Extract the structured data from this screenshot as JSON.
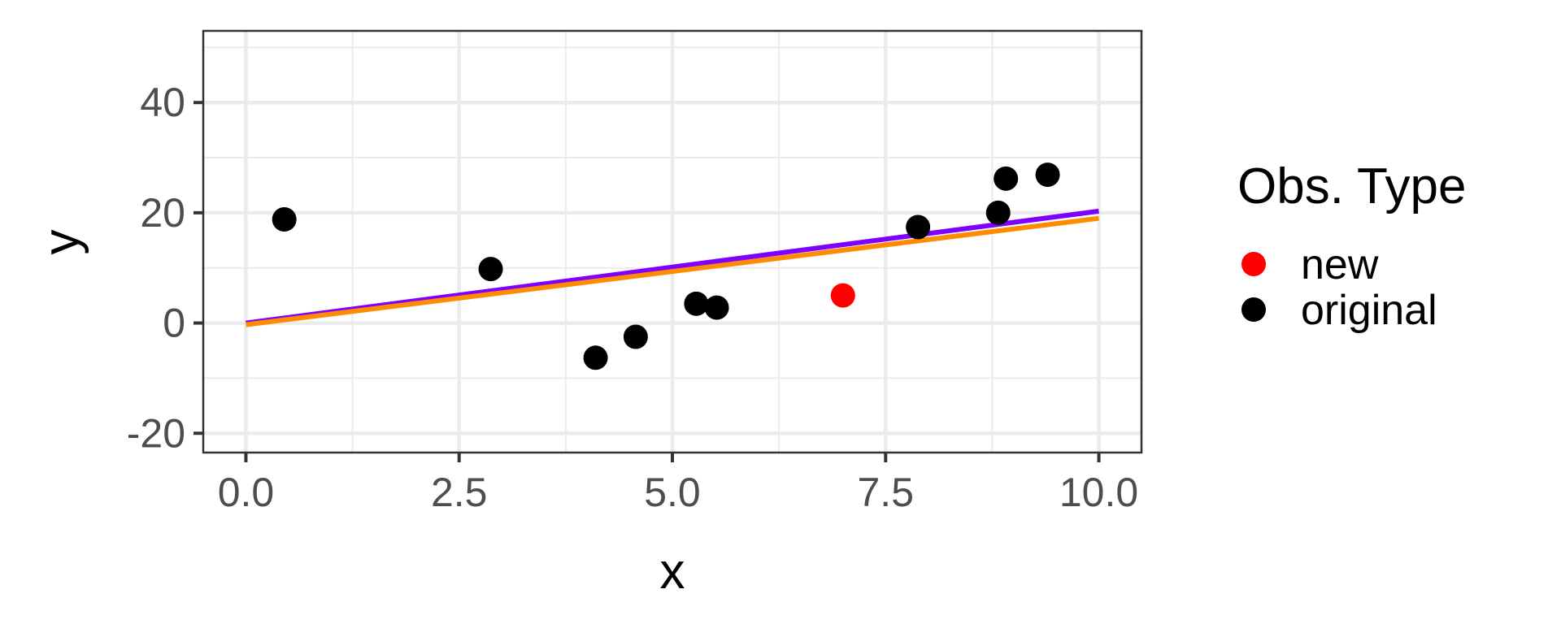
{
  "chart_data": {
    "type": "scatter",
    "xlabel": "x",
    "ylabel": "y",
    "xlim": [
      -0.5,
      10.5
    ],
    "ylim": [
      -23.5,
      53
    ],
    "x_ticks": [
      0.0,
      2.5,
      5.0,
      7.5,
      10.0
    ],
    "x_tick_labels": [
      "0.0",
      "2.5",
      "5.0",
      "7.5",
      "10.0"
    ],
    "y_ticks": [
      -20,
      0,
      20,
      40
    ],
    "y_tick_labels": [
      "-20",
      "0",
      "20",
      "40"
    ],
    "grid": true,
    "legend": {
      "title": "Obs. Type",
      "placement": "right",
      "entries": [
        {
          "label": "new",
          "color": "#ff0000"
        },
        {
          "label": "original",
          "color": "#000000"
        }
      ]
    },
    "series": [
      {
        "name": "original",
        "color": "#000000",
        "points": [
          {
            "x": 0.45,
            "y": 18.8
          },
          {
            "x": 2.87,
            "y": 9.8
          },
          {
            "x": 4.1,
            "y": -6.3
          },
          {
            "x": 4.57,
            "y": -2.5
          },
          {
            "x": 5.28,
            "y": 3.5
          },
          {
            "x": 5.52,
            "y": 2.8
          },
          {
            "x": 7.88,
            "y": 17.4
          },
          {
            "x": 8.82,
            "y": 20.0
          },
          {
            "x": 8.91,
            "y": 26.2
          },
          {
            "x": 9.4,
            "y": 26.9
          }
        ]
      },
      {
        "name": "new",
        "color": "#ff0000",
        "points": [
          {
            "x": 7.0,
            "y": 5.0
          }
        ]
      }
    ],
    "lines": [
      {
        "color": "#8000ff",
        "x": [
          0,
          10
        ],
        "y": [
          0,
          20.3
        ]
      },
      {
        "color": "#ff8c00",
        "x": [
          0,
          10
        ],
        "y": [
          -0.3,
          19.0
        ]
      }
    ]
  }
}
